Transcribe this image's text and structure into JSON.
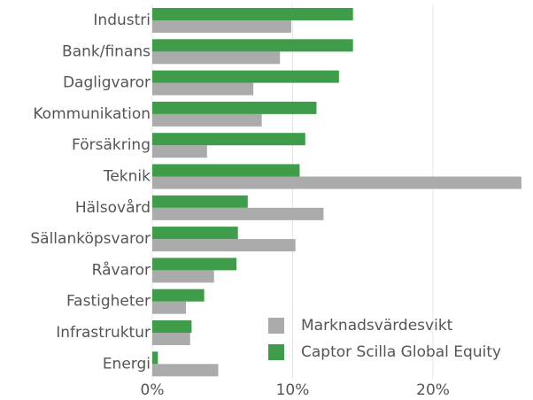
{
  "chart_data": {
    "type": "barh",
    "categories": [
      "Industri",
      "Bank/finans",
      "Dagligvaror",
      "Kommunikation",
      "Försäkring",
      "Teknik",
      "Hälsovård",
      "Sällanköpsvaror",
      "Råvaror",
      "Fastigheter",
      "Infrastruktur",
      "Energi"
    ],
    "series": [
      {
        "name": "Marknadsvärdesvikt",
        "color": "#ababab",
        "values": [
          9.9,
          9.1,
          7.2,
          7.8,
          3.9,
          26.3,
          12.2,
          10.2,
          4.4,
          2.4,
          2.7,
          4.7
        ]
      },
      {
        "name": "Captor Scilla Global Equity",
        "color": "#3e9c4a",
        "values": [
          14.3,
          14.3,
          13.3,
          11.7,
          10.9,
          10.5,
          6.8,
          6.1,
          6.0,
          3.7,
          2.8,
          0.4
        ]
      }
    ],
    "xlim": [
      0,
      27
    ],
    "xticks": [
      {
        "value": 0,
        "label": "0%"
      },
      {
        "value": 10,
        "label": "10%"
      },
      {
        "value": 20,
        "label": "20%"
      }
    ],
    "grid": true,
    "legend": "lower right"
  }
}
